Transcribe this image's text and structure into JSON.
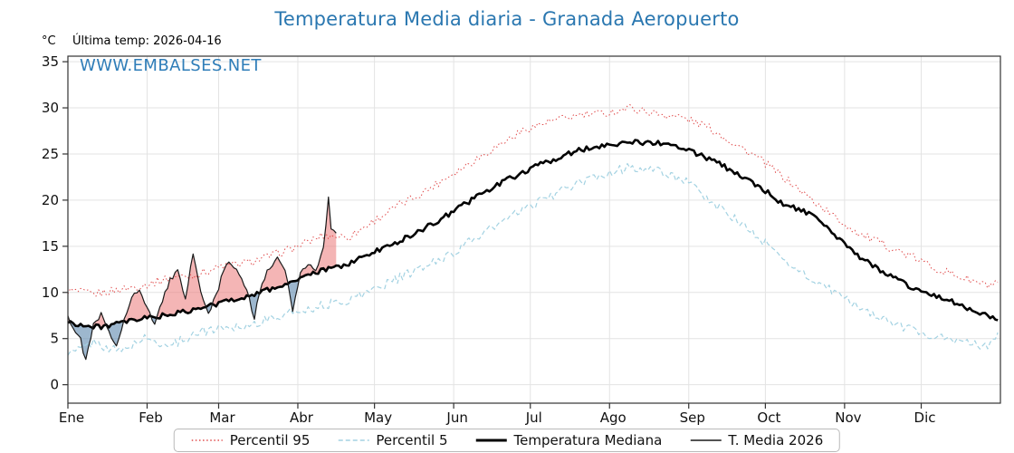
{
  "page": {
    "title": "Temperatura Media diaria - Granada Aeropuerto",
    "unit_label": "°C",
    "last_temp_label": "Última temp: 2026-04-16",
    "watermark": "WWW.EMBALSES.NET"
  },
  "colors": {
    "title": "#2a77b0",
    "watermark": "#2f7db8",
    "percentil95": "#e04b4b",
    "percentil5": "#a3d2e2",
    "mediana": "#000000",
    "t2026": "#1a1a1a",
    "fill_above": "rgba(235,120,120,0.55)",
    "fill_below": "rgba(105,145,180,0.65)",
    "grid": "#e3e3e3",
    "axis": "#333333",
    "tick_text": "#111111"
  },
  "chart_data": {
    "type": "line",
    "title": "Temperatura Media diaria - Granada Aeropuerto",
    "x_axis": {
      "months": [
        "Ene",
        "Feb",
        "Mar",
        "Abr",
        "May",
        "Jun",
        "Jul",
        "Ago",
        "Sep",
        "Oct",
        "Nov",
        "Dic"
      ],
      "month_start_days": [
        1,
        32,
        60,
        91,
        121,
        152,
        182,
        213,
        244,
        274,
        305,
        335
      ],
      "domain_days": [
        1,
        366
      ]
    },
    "y_axis": {
      "label": "°C",
      "ticks": [
        0,
        5,
        10,
        15,
        20,
        25,
        30,
        35
      ],
      "range": [
        -2,
        35.6
      ]
    },
    "series": [
      {
        "name": "Percentil 95",
        "style": "dotted",
        "width": 1,
        "color_key": "percentil95",
        "jitter": 0.45,
        "seed": 1,
        "days": [
          1,
          11,
          21,
          31,
          41,
          51,
          61,
          71,
          81,
          91,
          101,
          111,
          121,
          131,
          141,
          151,
          161,
          171,
          181,
          191,
          201,
          211,
          221,
          231,
          241,
          251,
          261,
          271,
          281,
          291,
          301,
          311,
          321,
          331,
          341,
          351,
          361,
          365
        ],
        "values": [
          10.2,
          9.8,
          10.3,
          10.8,
          11.6,
          11.9,
          12.8,
          13.2,
          14.0,
          15.0,
          16.2,
          16.0,
          17.8,
          19.5,
          21.0,
          22.8,
          24.5,
          26.2,
          27.8,
          28.6,
          29.2,
          29.4,
          30.0,
          29.4,
          29.0,
          28.0,
          26.3,
          24.6,
          22.5,
          20.3,
          18.2,
          16.3,
          15.1,
          13.9,
          12.6,
          11.6,
          10.7,
          10.9
        ]
      },
      {
        "name": "Percentil 5",
        "style": "dashed",
        "width": 1.2,
        "color_key": "percentil5",
        "jitter": 0.5,
        "seed": 2,
        "days": [
          1,
          11,
          21,
          31,
          41,
          51,
          61,
          71,
          81,
          91,
          101,
          111,
          121,
          131,
          141,
          151,
          161,
          171,
          181,
          191,
          201,
          211,
          221,
          231,
          241,
          251,
          261,
          271,
          281,
          291,
          301,
          311,
          321,
          331,
          341,
          351,
          361,
          365
        ],
        "values": [
          3.2,
          4.6,
          3.6,
          5.0,
          4.2,
          5.6,
          6.2,
          6.4,
          7.2,
          8.0,
          8.6,
          9.2,
          10.4,
          11.6,
          12.8,
          14.2,
          16.0,
          17.6,
          19.2,
          20.6,
          21.8,
          22.8,
          23.6,
          23.2,
          22.4,
          20.2,
          18.2,
          16.0,
          13.6,
          11.6,
          10.0,
          8.4,
          7.0,
          6.0,
          5.2,
          4.6,
          4.2,
          5.2
        ]
      },
      {
        "name": "Temperatura Mediana",
        "style": "solid",
        "width": 2.6,
        "color_key": "mediana",
        "jitter": 0.28,
        "seed": 3,
        "days": [
          1,
          11,
          21,
          31,
          41,
          51,
          61,
          71,
          81,
          91,
          101,
          111,
          121,
          131,
          141,
          151,
          161,
          171,
          181,
          191,
          201,
          211,
          221,
          231,
          241,
          251,
          261,
          271,
          281,
          291,
          301,
          311,
          321,
          331,
          341,
          351,
          361,
          365
        ],
        "values": [
          6.8,
          6.2,
          6.6,
          7.2,
          7.6,
          8.1,
          8.9,
          9.6,
          10.4,
          11.4,
          12.4,
          13.1,
          14.4,
          15.6,
          17.0,
          18.6,
          20.4,
          21.9,
          23.3,
          24.4,
          25.4,
          26.0,
          26.3,
          26.2,
          25.8,
          24.6,
          23.2,
          21.6,
          19.6,
          18.6,
          16.2,
          13.8,
          12.1,
          10.6,
          9.6,
          8.6,
          7.4,
          7.1
        ]
      },
      {
        "name": "T. Media 2026",
        "style": "solid",
        "width": 1.2,
        "color_key": "t2026",
        "jitter": 0.3,
        "seed": 4,
        "days": [
          1,
          3,
          6,
          8,
          11,
          14,
          17,
          20,
          23,
          26,
          29,
          32,
          35,
          38,
          41,
          44,
          47,
          50,
          53,
          56,
          59,
          62,
          65,
          68,
          71,
          74,
          77,
          80,
          83,
          86,
          89,
          92,
          95,
          98,
          101,
          103,
          104,
          106
        ],
        "values": [
          7.5,
          6.2,
          4.8,
          2.6,
          6.4,
          7.6,
          5.6,
          4.2,
          7.2,
          9.6,
          10.2,
          8.2,
          6.6,
          9.2,
          11.4,
          12.2,
          9.2,
          14.2,
          10.2,
          7.6,
          9.6,
          12.6,
          13.2,
          12.2,
          10.2,
          7.2,
          11.2,
          12.6,
          13.6,
          12.2,
          8.2,
          12.2,
          13.2,
          12.6,
          14.6,
          20.4,
          16.8,
          16.4
        ]
      }
    ],
    "fill_between": {
      "series_a": "T. Media 2026",
      "series_b": "Temperatura Mediana",
      "above_color_key": "fill_above",
      "below_color_key": "fill_below"
    },
    "legend": {
      "position": "bottom",
      "items": [
        "Percentil 95",
        "Percentil 5",
        "Temperatura Mediana",
        "T. Media 2026"
      ]
    }
  }
}
